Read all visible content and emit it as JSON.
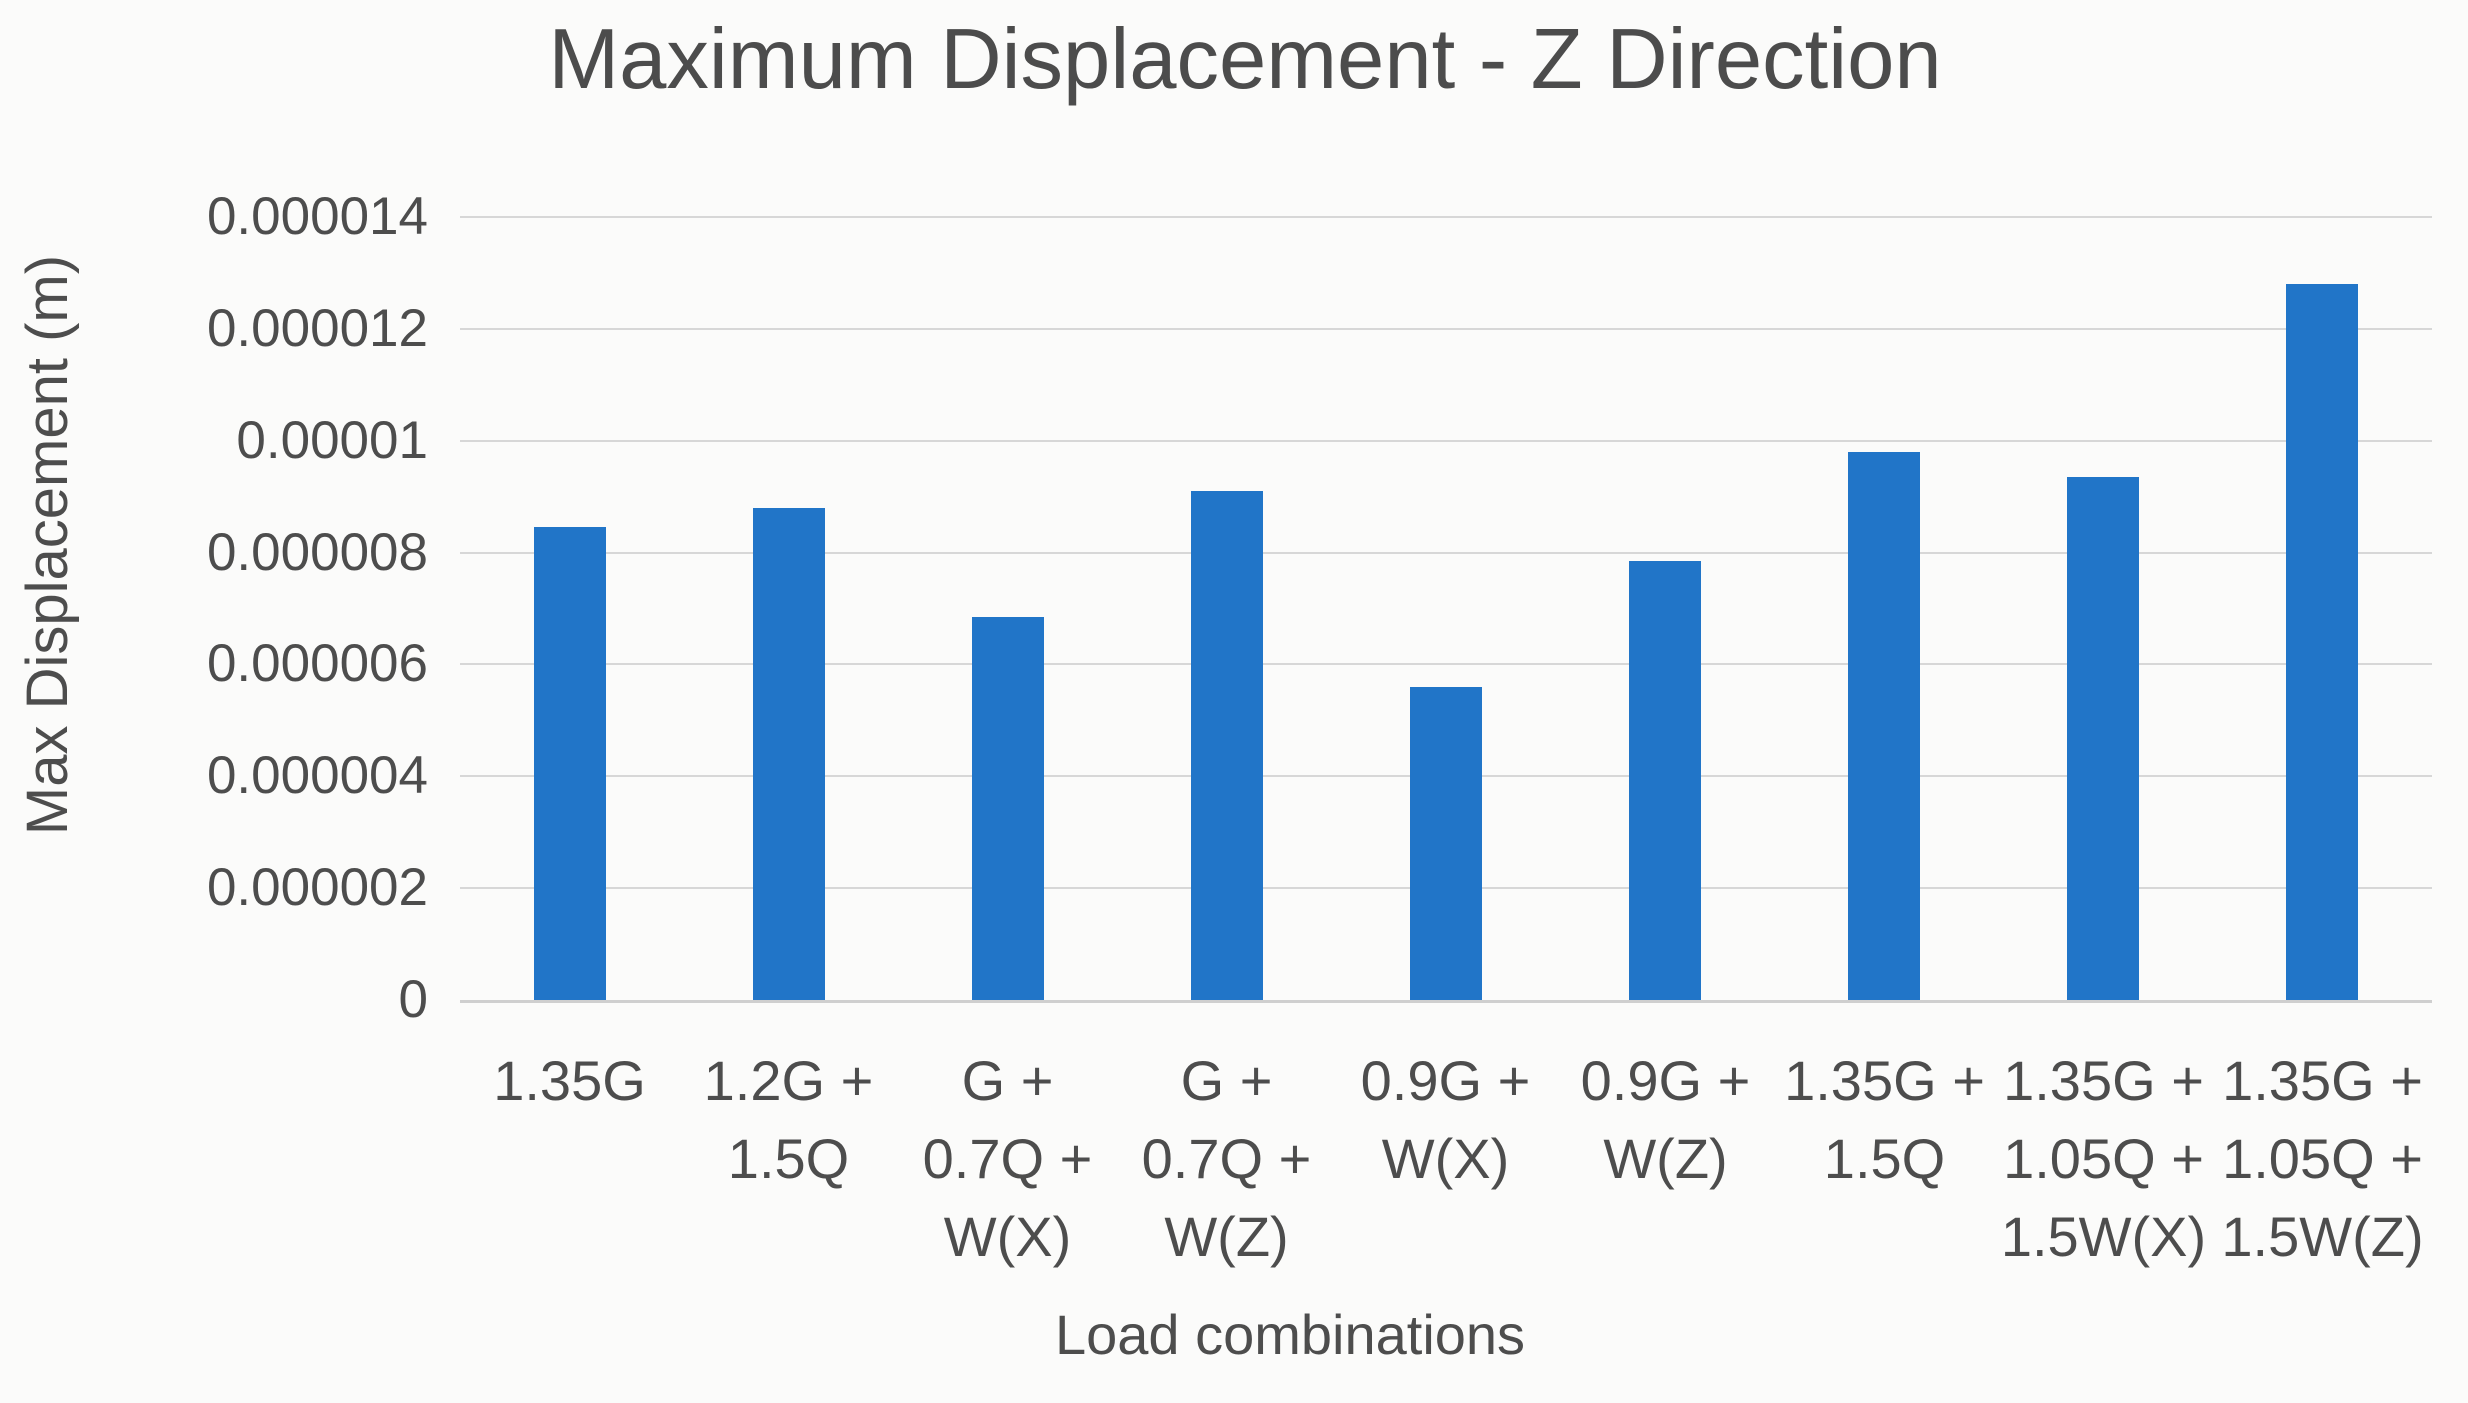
{
  "chart_data": {
    "type": "bar",
    "title": "Maximum Displacement - Z Direction",
    "xlabel": "Load combinations",
    "ylabel": "Max Displacement (m)",
    "ylim": [
      0,
      1.4e-05
    ],
    "y_tick_labels": [
      "0",
      "0.000002",
      "0.000004",
      "0.000006",
      "0.000008",
      "0.00001",
      "0.000012",
      "0.000014"
    ],
    "categories": [
      "1.35G",
      "1.2G + 1.5Q",
      "G + 0.7Q + W(X)",
      "G + 0.7Q + W(Z)",
      "0.9G + W(X)",
      "0.9G + W(Z)",
      "1.35G + 1.5Q",
      "1.35G + 1.05Q + 1.5W(X)",
      "1.35G + 1.05Q + 1.5W(Z)"
    ],
    "x_tick_display": [
      "1.35G",
      "1.2G +\n1.5Q",
      "G +\n0.7Q +\nW(X)",
      "G +\n0.7Q +\nW(Z)",
      "0.9G +\nW(X)",
      "0.9G +\nW(Z)",
      "1.35G +\n1.5Q",
      "1.35G +\n1.05Q +\n1.5W(X)",
      "1.35G +\n1.05Q +\n1.5W(Z)"
    ],
    "values": [
      8.45e-06,
      8.8e-06,
      6.85e-06,
      9.1e-06,
      5.6e-06,
      7.85e-06,
      9.8e-06,
      9.35e-06,
      1.28e-05
    ],
    "bar_color": "#2175c8",
    "gridline_color": "#d7d7d7",
    "axis_line_color": "#cfcfcf",
    "text_color": "#4d4d4d",
    "grid": true,
    "legend": false
  }
}
